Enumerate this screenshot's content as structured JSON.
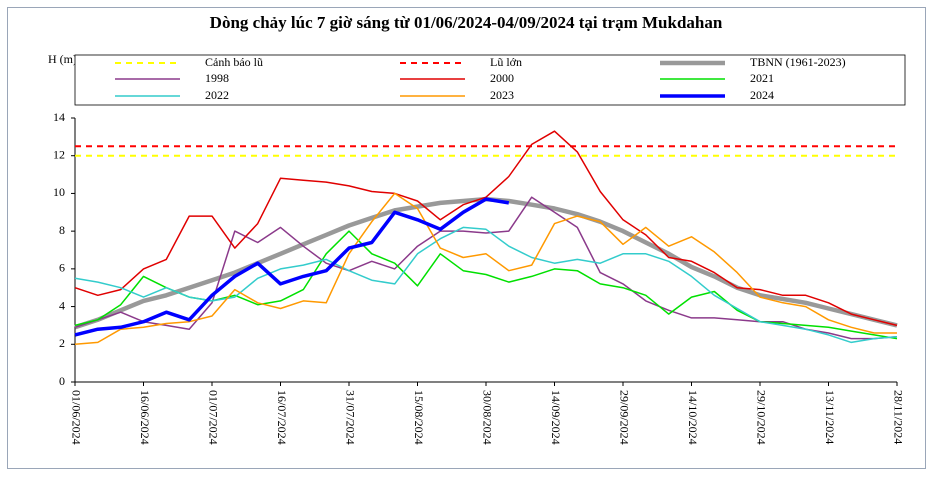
{
  "chart_data": {
    "type": "line",
    "title": "Dòng chảy lúc 7 giờ sáng từ 01/06/2024-04/09/2024 tại trạm Mukdahan",
    "y_label": "H (m)",
    "x": [
      "01/06/2024",
      "06/06/2024",
      "11/06/2024",
      "16/06/2024",
      "21/06/2024",
      "26/06/2024",
      "01/07/2024",
      "06/07/2024",
      "11/07/2024",
      "16/07/2024",
      "21/07/2024",
      "26/07/2024",
      "31/07/2024",
      "05/08/2024",
      "10/08/2024",
      "15/08/2024",
      "20/08/2024",
      "25/08/2024",
      "30/08/2024",
      "04/09/2024",
      "09/09/2024",
      "14/09/2024",
      "19/09/2024",
      "24/09/2024",
      "29/09/2024",
      "04/10/2024",
      "09/10/2024",
      "14/10/2024",
      "19/10/2024",
      "24/10/2024",
      "29/10/2024",
      "03/11/2024",
      "08/11/2024",
      "13/11/2024",
      "18/11/2024",
      "23/11/2024",
      "28/11/2024"
    ],
    "xlim": [
      "01/06/2024",
      "28/11/2024"
    ],
    "xticks": [
      "01/06/2024",
      "16/06/2024",
      "01/07/2024",
      "16/07/2024",
      "31/07/2024",
      "15/08/2024",
      "30/08/2024",
      "14/09/2024",
      "29/09/2024",
      "14/10/2024",
      "29/10/2024",
      "13/11/2024",
      "28/11/2024"
    ],
    "ylim": [
      0,
      14
    ],
    "yticks": [
      0,
      2,
      4,
      6,
      8,
      10,
      12,
      14
    ],
    "grid": false,
    "series": [
      {
        "name": "Cảnh báo lũ",
        "color": "#ffff00",
        "dashed": true,
        "value": 12
      },
      {
        "name": "Lũ lớn",
        "color": "#ff0000",
        "dashed": true,
        "value": 12.5
      },
      {
        "name": "TBNN (1961-2023)",
        "color": "#999999",
        "width": 4.5,
        "values": [
          2.9,
          3.3,
          3.8,
          4.3,
          4.6,
          5.0,
          5.4,
          5.8,
          6.3,
          6.8,
          7.3,
          7.8,
          8.3,
          8.7,
          9.1,
          9.3,
          9.5,
          9.6,
          9.7,
          9.6,
          9.4,
          9.2,
          8.9,
          8.5,
          8.0,
          7.4,
          6.8,
          6.1,
          5.6,
          5.0,
          4.6,
          4.4,
          4.2,
          3.9,
          3.6,
          3.3,
          3.0
        ]
      },
      {
        "name": "1998",
        "color": "#8b3a8b",
        "width": 1.5,
        "values": [
          2.9,
          3.3,
          3.7,
          3.2,
          3.0,
          2.8,
          4.2,
          8.0,
          7.4,
          8.2,
          7.2,
          6.3,
          5.9,
          6.4,
          6.0,
          7.2,
          8.0,
          8.0,
          7.9,
          8.0,
          9.8,
          9.0,
          8.2,
          5.8,
          5.2,
          4.3,
          3.8,
          3.4,
          3.4,
          3.3,
          3.2,
          3.2,
          2.8,
          2.6,
          2.3,
          2.3,
          2.4
        ]
      },
      {
        "name": "2000",
        "color": "#e00000",
        "width": 1.5,
        "values": [
          5.0,
          4.6,
          4.9,
          6.0,
          6.5,
          8.8,
          8.8,
          7.1,
          8.4,
          10.8,
          10.7,
          10.6,
          10.4,
          10.1,
          10.0,
          9.6,
          8.6,
          9.4,
          9.8,
          10.9,
          12.6,
          13.3,
          12.2,
          10.1,
          8.6,
          7.8,
          6.6,
          6.4,
          5.8,
          5.0,
          4.9,
          4.6,
          4.6,
          4.2,
          3.6,
          3.3,
          3.0
        ]
      },
      {
        "name": "2021",
        "color": "#00e000",
        "width": 1.5,
        "values": [
          3.0,
          3.3,
          4.1,
          5.6,
          5.0,
          4.5,
          4.3,
          4.6,
          4.1,
          4.3,
          4.9,
          6.8,
          8.0,
          6.8,
          6.3,
          5.1,
          6.8,
          5.9,
          5.7,
          5.3,
          5.6,
          6.0,
          5.9,
          5.2,
          5.0,
          4.6,
          3.6,
          4.5,
          4.8,
          3.8,
          3.2,
          3.1,
          3.0,
          2.9,
          2.7,
          2.5,
          2.3
        ]
      },
      {
        "name": "2022",
        "color": "#33cccc",
        "width": 1.5,
        "values": [
          5.5,
          5.3,
          5.0,
          4.5,
          5.0,
          4.5,
          4.3,
          4.5,
          5.5,
          6.0,
          6.2,
          6.5,
          5.9,
          5.4,
          5.2,
          6.8,
          7.6,
          8.2,
          8.1,
          7.2,
          6.6,
          6.3,
          6.5,
          6.3,
          6.8,
          6.8,
          6.4,
          5.6,
          4.6,
          3.9,
          3.2,
          3.0,
          2.8,
          2.5,
          2.1,
          2.3,
          2.4
        ]
      },
      {
        "name": "2023",
        "color": "#ff9900",
        "width": 1.5,
        "values": [
          2.0,
          2.1,
          2.8,
          2.9,
          3.1,
          3.2,
          3.5,
          4.9,
          4.2,
          3.9,
          4.3,
          4.2,
          6.8,
          8.5,
          10.0,
          9.2,
          7.1,
          6.6,
          6.8,
          5.9,
          6.2,
          8.4,
          8.8,
          8.5,
          7.3,
          8.2,
          7.2,
          7.7,
          6.9,
          5.8,
          4.5,
          4.2,
          4.0,
          3.3,
          2.9,
          2.6,
          2.6
        ]
      },
      {
        "name": "2024",
        "color": "#0000ff",
        "width": 3.5,
        "values": [
          2.5,
          2.8,
          2.9,
          3.2,
          3.7,
          3.3,
          4.6,
          5.6,
          6.3,
          5.2,
          5.6,
          5.9,
          7.1,
          7.4,
          9.0,
          8.6,
          8.1,
          9.0,
          9.7,
          9.5,
          null,
          null,
          null,
          null,
          null,
          null,
          null,
          null,
          null,
          null,
          null,
          null,
          null,
          null,
          null,
          null,
          null
        ]
      }
    ]
  }
}
